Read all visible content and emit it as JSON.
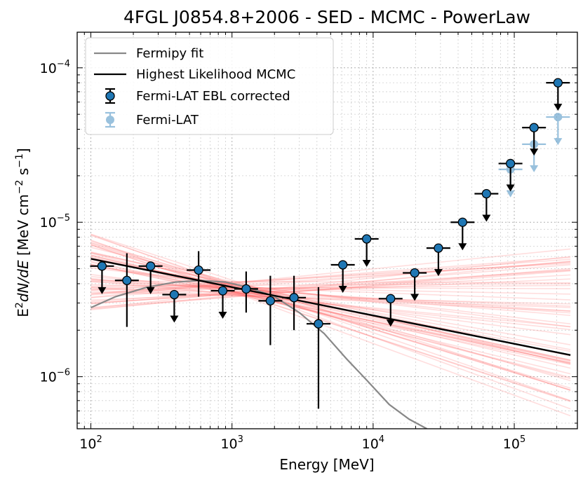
{
  "chart_data": {
    "type": "scatter",
    "title": "4FGL J0854.8+2006 - SED - MCMC - PowerLaw",
    "xlabel": "Energy [MeV]",
    "ylabel": {
      "prefix": "E",
      "sup1": "2",
      "dnde": "dN/dE",
      "units_a": " [MeV cm",
      "sup2": "−2",
      "units_b": " s",
      "sup3": "−1",
      "units_c": "]"
    },
    "x_scale": "log",
    "y_scale": "log",
    "xlim": [
      80,
      280000
    ],
    "ylim": [
      4.6e-07,
      0.00017
    ],
    "x_ticks": [
      {
        "value": 100,
        "base": "10",
        "exp": "2"
      },
      {
        "value": 1000,
        "base": "10",
        "exp": "3"
      },
      {
        "value": 10000,
        "base": "10",
        "exp": "4"
      },
      {
        "value": 100000,
        "base": "10",
        "exp": "5"
      }
    ],
    "y_ticks": [
      {
        "value": 1e-06,
        "base": "10",
        "exp": "−6"
      },
      {
        "value": 1e-05,
        "base": "10",
        "exp": "−5"
      },
      {
        "value": 0.0001,
        "base": "10",
        "exp": "−4"
      }
    ],
    "grid": true,
    "legend_position": "top-left",
    "legend": [
      {
        "label": "Fermipy fit",
        "kind": "line",
        "color": "#888888"
      },
      {
        "label": "Highest Likelihood MCMC",
        "kind": "line",
        "color": "#000000"
      },
      {
        "label": "Fermi-LAT EBL corrected",
        "kind": "errorbar",
        "color": "#1f77b4"
      },
      {
        "label": "Fermi-LAT",
        "kind": "errorbar-faint",
        "color": "#1f77b4"
      }
    ],
    "colors": {
      "marker": "#1f77b4",
      "faint": "#8fbbd9",
      "mcmc_samples": "#ff6b6b",
      "fermipy": "#888888",
      "best": "#000000"
    },
    "best_fit": {
      "x_range": [
        100,
        250000
      ],
      "y_range": [
        5.8e-06,
        1.38e-06
      ]
    },
    "fermipy_fit": {
      "points": [
        [
          100,
          2.8e-06
        ],
        [
          150,
          3.3e-06
        ],
        [
          250,
          3.8e-06
        ],
        [
          400,
          4.1e-06
        ],
        [
          600,
          4.2e-06
        ],
        [
          900,
          4.1e-06
        ],
        [
          1300,
          3.8e-06
        ],
        [
          2000,
          3.3e-06
        ],
        [
          3000,
          2.6e-06
        ],
        [
          4500,
          1.9e-06
        ],
        [
          6500,
          1.3e-06
        ],
        [
          9000,
          9.5e-07
        ],
        [
          13000,
          6.6e-07
        ],
        [
          18000,
          5.3e-07
        ],
        [
          24000,
          4.6e-07
        ]
      ]
    },
    "mcmc_samples": {
      "count": 60,
      "pivot_energy": 1200,
      "pivot_flux": 3.7e-06,
      "pivot_scatter_dex": 0.05,
      "slope_range": [
        -0.34,
        0.1
      ]
    },
    "ebl_corrected_points": [
      {
        "x": 120,
        "y": 5.2e-06,
        "ul": true
      },
      {
        "x": 180,
        "y": 4.2e-06,
        "yerr_lo": 2.1e-06,
        "yerr_hi": 6.3e-06,
        "ul": false
      },
      {
        "x": 265,
        "y": 5.2e-06,
        "ul": true
      },
      {
        "x": 390,
        "y": 3.4e-06,
        "ul": true
      },
      {
        "x": 580,
        "y": 4.9e-06,
        "yerr_lo": 3.3e-06,
        "yerr_hi": 6.5e-06,
        "ul": false
      },
      {
        "x": 860,
        "y": 3.6e-06,
        "ul": true
      },
      {
        "x": 1260,
        "y": 3.7e-06,
        "yerr_lo": 2.6e-06,
        "yerr_hi": 4.8e-06,
        "ul": false
      },
      {
        "x": 1870,
        "y": 3.1e-06,
        "yerr_lo": 1.6e-06,
        "yerr_hi": 4.5e-06,
        "ul": false
      },
      {
        "x": 2750,
        "y": 3.25e-06,
        "yerr_lo": 2e-06,
        "yerr_hi": 4.5e-06,
        "ul": false
      },
      {
        "x": 4100,
        "y": 2.2e-06,
        "yerr_lo": 6.2e-07,
        "yerr_hi": 3.8e-06,
        "ul": false
      },
      {
        "x": 6100,
        "y": 5.3e-06,
        "ul": true
      },
      {
        "x": 9000,
        "y": 7.8e-06,
        "ul": true
      },
      {
        "x": 13300,
        "y": 3.2e-06,
        "ul": true
      },
      {
        "x": 19700,
        "y": 4.7e-06,
        "ul": true
      },
      {
        "x": 29000,
        "y": 6.8e-06,
        "ul": true
      },
      {
        "x": 43000,
        "y": 1e-05,
        "ul": true
      },
      {
        "x": 63500,
        "y": 1.53e-05,
        "ul": true
      },
      {
        "x": 94000,
        "y": 2.4e-05,
        "ul": true
      },
      {
        "x": 138000,
        "y": 4.1e-05,
        "ul": true
      },
      {
        "x": 204000,
        "y": 8e-05,
        "ul": true
      }
    ],
    "fermi_lat_points": [
      {
        "x": 94000,
        "y": 2.2e-05,
        "ul": true
      },
      {
        "x": 138000,
        "y": 3.2e-05,
        "ul": true
      },
      {
        "x": 204000,
        "y": 4.8e-05,
        "ul": true
      }
    ]
  }
}
